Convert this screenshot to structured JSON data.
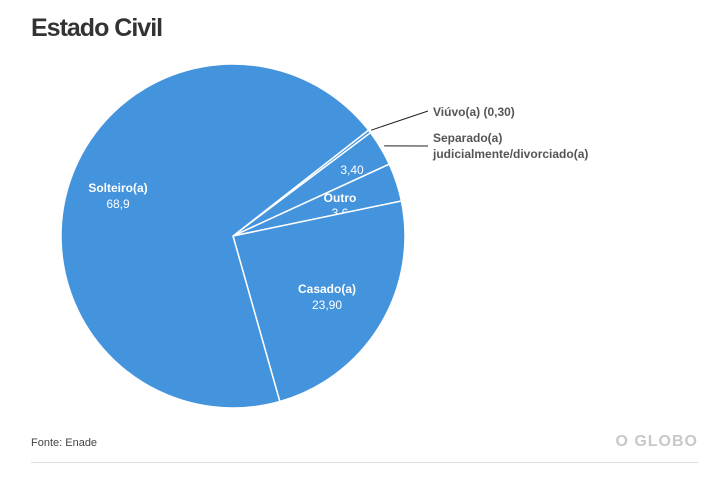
{
  "chart_data": {
    "type": "pie",
    "title": "Estado Civil",
    "slices": [
      {
        "label": "Viúvo(a) (0,30)",
        "value": 0.3,
        "value_label": ""
      },
      {
        "label": "Separado(a) judicialmente/divorciado(a)",
        "value": 3.4,
        "value_label": "3,40"
      },
      {
        "label": "Outro",
        "value": 3.6,
        "value_label": "3,6"
      },
      {
        "label": "Casado(a)",
        "value": 23.9,
        "value_label": "23,90"
      },
      {
        "label": "Solteiro(a)",
        "value": 68.9,
        "value_label": "68,9"
      }
    ],
    "start_angle_deg": 52,
    "color": "#4393dd"
  },
  "source": "Fonte: Enade",
  "logo": "O GLOBO"
}
